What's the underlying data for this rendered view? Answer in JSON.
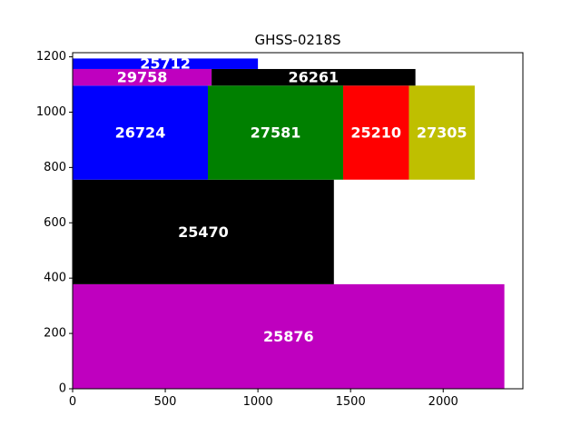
{
  "chart_data": {
    "type": "bar",
    "title": "GHSS-0218S",
    "xlabel": "",
    "ylabel": "",
    "xlim": [
      0,
      2430
    ],
    "ylim": [
      0,
      1215
    ],
    "grid": false,
    "xticks": [
      0,
      500,
      1000,
      1500,
      2000
    ],
    "yticks": [
      0,
      200,
      400,
      600,
      800,
      1000,
      1200
    ],
    "rects": [
      {
        "label": "25876",
        "x": 0,
        "y": 0,
        "w": 2330,
        "h": 378,
        "color": "#bf00bf"
      },
      {
        "label": "25470",
        "x": 0,
        "y": 378,
        "w": 1410,
        "h": 378,
        "color": "#000000"
      },
      {
        "label": "26724",
        "x": 0,
        "y": 756,
        "w": 730,
        "h": 340,
        "color": "#0000ff"
      },
      {
        "label": "27581",
        "x": 730,
        "y": 756,
        "w": 730,
        "h": 340,
        "color": "#008000"
      },
      {
        "label": "25210",
        "x": 1460,
        "y": 756,
        "w": 355,
        "h": 340,
        "color": "#ff0000"
      },
      {
        "label": "27305",
        "x": 1815,
        "y": 756,
        "w": 355,
        "h": 340,
        "color": "#bfbf00"
      },
      {
        "label": "29758",
        "x": 0,
        "y": 1096,
        "w": 750,
        "h": 60,
        "color": "#bf00bf"
      },
      {
        "label": "26261",
        "x": 750,
        "y": 1096,
        "w": 1100,
        "h": 60,
        "color": "#000000"
      },
      {
        "label": "25712",
        "x": 0,
        "y": 1156,
        "w": 1000,
        "h": 38,
        "color": "#0000ff"
      }
    ]
  }
}
